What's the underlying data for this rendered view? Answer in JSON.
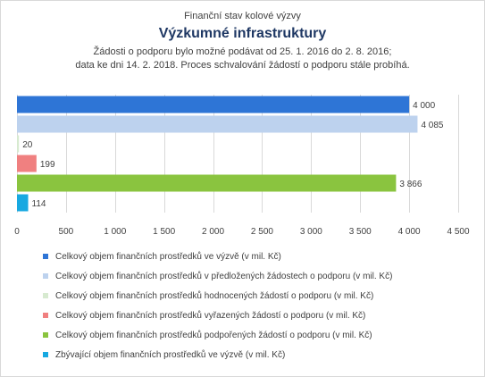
{
  "header": {
    "suptitle": "Finanční stav kolové výzvy",
    "title": "Výzkumné infrastruktury",
    "subtitle_line1": "Žádosti o podporu bylo možné  podávat od 25. 1. 2016 do 2. 8. 2016;",
    "subtitle_line2": "data ke dni 14. 2. 2018. Proces schvalování žádostí o podporu stále probíhá."
  },
  "chart_data": {
    "type": "bar",
    "orientation": "horizontal",
    "xlim": [
      0,
      4500
    ],
    "x_ticks": [
      0,
      500,
      1000,
      1500,
      2000,
      2500,
      3000,
      3500,
      4000,
      4500
    ],
    "x_tick_labels": [
      "0",
      "500",
      "1 000",
      "1 500",
      "2 000",
      "2 500",
      "3 000",
      "3 500",
      "4 000",
      "4 500"
    ],
    "grid": true,
    "legend_position": "bottom",
    "series": [
      {
        "name": "Celkový objem finančních prostředků ve výzvě (v mil. Kč)",
        "value": 4000,
        "label": "4 000",
        "color": "#2e75d6"
      },
      {
        "name": "Celkový objem finančních prostředků v předložených žádostech o podporu (v mil. Kč)",
        "value": 4085,
        "label": "4 085",
        "color": "#bdd2ee"
      },
      {
        "name": "Celkový objem finančních prostředků hodnocených žádostí o podporu (v mil. Kč)",
        "value": 20,
        "label": "20",
        "color": "#d7ead0"
      },
      {
        "name": "Celkový objem finančních prostředků vyřazených žádostí o podporu (v mil. Kč)",
        "value": 199,
        "label": "199",
        "color": "#f08080"
      },
      {
        "name": "Celkový objem finančních prostředků podpořených žádostí o podporu (v mil. Kč)",
        "value": 3866,
        "label": "3 866",
        "color": "#8ac43f"
      },
      {
        "name": "Zbývající objem finančních prostředků ve výzvě (v mil. Kč)",
        "value": 114,
        "label": "114",
        "color": "#17a9e1"
      }
    ]
  }
}
